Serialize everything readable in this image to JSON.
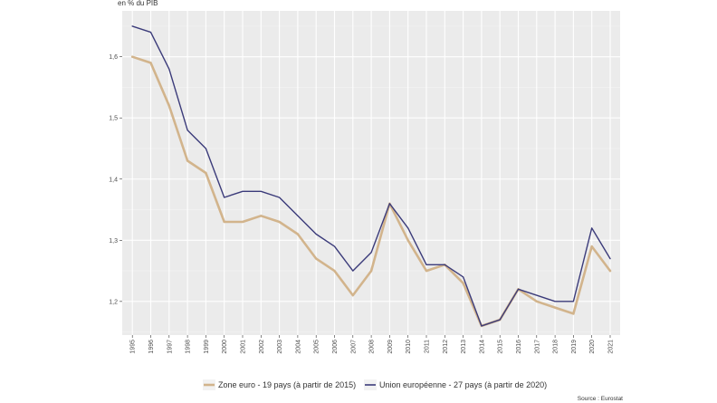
{
  "chart_data": {
    "type": "line",
    "unit_label": "en % du PIB",
    "x": [
      "1995",
      "1996",
      "1997",
      "1998",
      "1999",
      "2000",
      "2001",
      "2002",
      "2003",
      "2004",
      "2005",
      "2006",
      "2007",
      "2008",
      "2009",
      "2010",
      "2011",
      "2012",
      "2013",
      "2014",
      "2015",
      "2016",
      "2017",
      "2018",
      "2019",
      "2020",
      "2021"
    ],
    "y_ticks": [
      "1,2",
      "1,3",
      "1,4",
      "1,5",
      "1,6"
    ],
    "ylim": [
      1.145,
      1.675
    ],
    "series": [
      {
        "name": "Zone euro - 19 pays (à partir de 2015)",
        "color": "#d2b48c",
        "values": [
          1.6,
          1.59,
          1.52,
          1.43,
          1.41,
          1.33,
          1.33,
          1.34,
          1.33,
          1.31,
          1.27,
          1.25,
          1.21,
          1.25,
          1.36,
          1.3,
          1.25,
          1.26,
          1.23,
          1.16,
          1.17,
          1.22,
          1.2,
          1.19,
          1.18,
          1.29,
          1.25
        ]
      },
      {
        "name": "Union européenne - 27 pays (à partir de 2020)",
        "color": "#3b3b7a",
        "values": [
          1.65,
          1.64,
          1.58,
          1.48,
          1.45,
          1.37,
          1.38,
          1.38,
          1.37,
          1.34,
          1.31,
          1.29,
          1.25,
          1.28,
          1.36,
          1.32,
          1.26,
          1.26,
          1.24,
          1.16,
          1.17,
          1.22,
          1.21,
          1.2,
          1.2,
          1.32,
          1.27
        ]
      }
    ],
    "grid": true,
    "legend_position": "bottom",
    "source": "Source : Eurostat"
  }
}
